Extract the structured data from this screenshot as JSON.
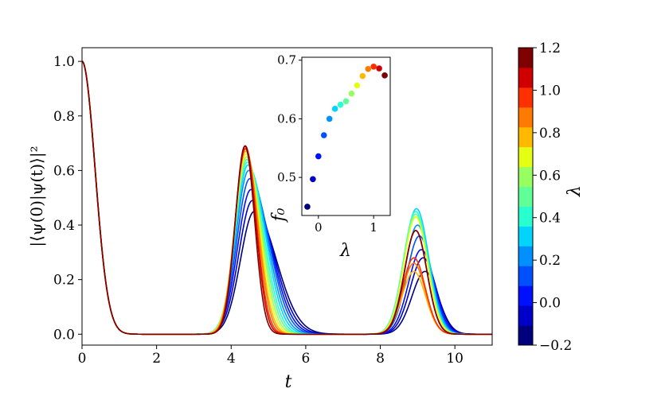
{
  "chart_data": [
    {
      "type": "line",
      "xlabel": "t",
      "ylabel": "|⟨ψ(0)|ψ(t)⟩|²",
      "xlim": [
        0,
        11
      ],
      "ylim": [
        -0.04,
        1.05
      ],
      "xticks": [
        "0",
        "2",
        "4",
        "6",
        "8",
        "10"
      ],
      "yticks": [
        "0.0",
        "0.2",
        "0.4",
        "0.6",
        "0.8",
        "1.0"
      ],
      "grid": false,
      "series": [
        {
          "lambda": -0.2,
          "peak1_t": 4.62,
          "peak1": 0.45,
          "peak2_t": 9.2,
          "peak2": 0.23,
          "color": "#00007f"
        },
        {
          "lambda": -0.1,
          "peak1_t": 4.57,
          "peak1": 0.49,
          "peak2_t": 9.15,
          "peak2": 0.28,
          "color": "#0000c8"
        },
        {
          "lambda": 0.0,
          "peak1_t": 4.53,
          "peak1": 0.53,
          "peak2_t": 9.1,
          "peak2": 0.31,
          "color": "#0010ff"
        },
        {
          "lambda": 0.1,
          "peak1_t": 4.5,
          "peak1": 0.57,
          "peak2_t": 9.05,
          "peak2": 0.36,
          "color": "#0050ff"
        },
        {
          "lambda": 0.2,
          "peak1_t": 4.47,
          "peak1": 0.6,
          "peak2_t": 9.0,
          "peak2": 0.4,
          "color": "#0090ff"
        },
        {
          "lambda": 0.3,
          "peak1_t": 4.45,
          "peak1": 0.62,
          "peak2_t": 8.97,
          "peak2": 0.46,
          "color": "#00d4ff"
        },
        {
          "lambda": 0.4,
          "peak1_t": 4.43,
          "peak1": 0.63,
          "peak2_t": 8.95,
          "peak2": 0.45,
          "color": "#29ffce"
        },
        {
          "lambda": 0.5,
          "peak1_t": 4.42,
          "peak1": 0.64,
          "peak2_t": 8.95,
          "peak2": 0.44,
          "color": "#60ff97"
        },
        {
          "lambda": 0.6,
          "peak1_t": 4.41,
          "peak1": 0.65,
          "peak2_t": 8.95,
          "peak2": 0.43,
          "color": "#97ff60"
        },
        {
          "lambda": 0.7,
          "peak1_t": 4.4,
          "peak1": 0.66,
          "peak2_t": 8.95,
          "peak2": 0.43,
          "color": "#e4ff13"
        },
        {
          "lambda": 0.8,
          "peak1_t": 4.39,
          "peak1": 0.67,
          "peak2_t": 8.9,
          "peak2": 0.23,
          "color": "#ffb900"
        },
        {
          "lambda": 0.9,
          "peak1_t": 4.39,
          "peak1": 0.68,
          "peak2_t": 8.9,
          "peak2": 0.26,
          "color": "#ff7a00"
        },
        {
          "lambda": 1.0,
          "peak1_t": 4.38,
          "peak1": 0.68,
          "peak2_t": 8.9,
          "peak2": 0.28,
          "color": "#ff3000"
        },
        {
          "lambda": 1.1,
          "peak1_t": 4.38,
          "peak1": 0.69,
          "peak2_t": 8.95,
          "peak2": 0.38,
          "color": "#d10000"
        },
        {
          "lambda": 1.2,
          "peak1_t": 4.37,
          "peak1": 0.69,
          "peak2_t": 8.95,
          "peak2": 0.38,
          "color": "#7f0000"
        }
      ]
    },
    {
      "type": "scatter",
      "placement": "inset, upper center",
      "xlabel": "λ",
      "ylabel": "f₀",
      "xlim": [
        -0.3,
        1.3
      ],
      "ylim": [
        0.435,
        0.705
      ],
      "xticks": [
        "0",
        "1"
      ],
      "yticks": [
        "0.5",
        "0.6",
        "0.7"
      ],
      "points": [
        {
          "x": -0.2,
          "y": 0.45,
          "color": "#00007f"
        },
        {
          "x": -0.1,
          "y": 0.497,
          "color": "#0000c8"
        },
        {
          "x": 0.0,
          "y": 0.536,
          "color": "#0010ff"
        },
        {
          "x": 0.1,
          "y": 0.572,
          "color": "#0050ff"
        },
        {
          "x": 0.2,
          "y": 0.6,
          "color": "#0090ff"
        },
        {
          "x": 0.3,
          "y": 0.617,
          "color": "#00d4ff"
        },
        {
          "x": 0.4,
          "y": 0.624,
          "color": "#29ffce"
        },
        {
          "x": 0.5,
          "y": 0.63,
          "color": "#60ff97"
        },
        {
          "x": 0.6,
          "y": 0.643,
          "color": "#97ff60"
        },
        {
          "x": 0.7,
          "y": 0.657,
          "color": "#e4ff13"
        },
        {
          "x": 0.8,
          "y": 0.673,
          "color": "#ffb900"
        },
        {
          "x": 0.9,
          "y": 0.685,
          "color": "#ff7a00"
        },
        {
          "x": 1.0,
          "y": 0.689,
          "color": "#ff3000"
        },
        {
          "x": 1.1,
          "y": 0.686,
          "color": "#d10000"
        },
        {
          "x": 1.2,
          "y": 0.674,
          "color": "#7f0000"
        }
      ]
    }
  ],
  "colorbar": {
    "label": "λ",
    "range": [
      -0.2,
      1.2
    ],
    "tick_labels": [
      "−0.2",
      "0.0",
      "0.2",
      "0.4",
      "0.6",
      "0.8",
      "1.0",
      "1.2"
    ],
    "colors": [
      "#00007f",
      "#0000c8",
      "#0010ff",
      "#0050ff",
      "#0090ff",
      "#00d4ff",
      "#29ffce",
      "#60ff97",
      "#97ff60",
      "#e4ff13",
      "#ffb900",
      "#ff7a00",
      "#ff3000",
      "#d10000",
      "#7f0000"
    ]
  }
}
